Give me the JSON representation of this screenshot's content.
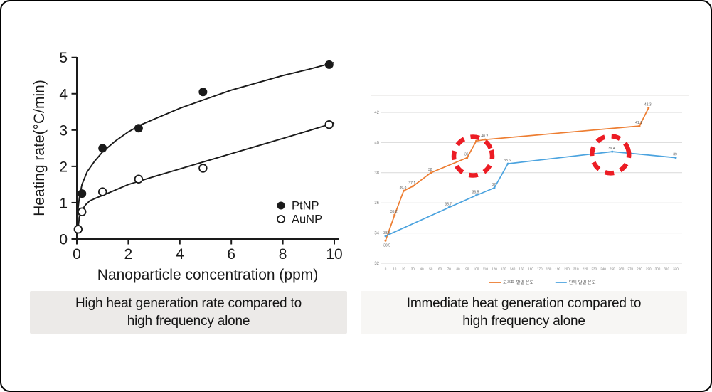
{
  "page": {
    "background": "#ffffff",
    "frame_border_color": "#000000"
  },
  "left_caption": {
    "lines": [
      "High heat generation rate compared to",
      "high frequency alone"
    ],
    "background": "#ECEAE8"
  },
  "right_caption": {
    "lines": [
      "Immediate heat generation compared to",
      "high frequency alone"
    ],
    "background": "#F7F6F4"
  },
  "chart_data": [
    {
      "id": "nanoparticle-heating-rate",
      "type": "scatter",
      "xlabel": "Nanoparticle concentration (ppm)",
      "ylabel": "Heating rate(°C/min)",
      "xlim": [
        0,
        10
      ],
      "ylim": [
        0,
        5
      ],
      "xticks": [
        0,
        2,
        4,
        6,
        8,
        10
      ],
      "yticks": [
        0,
        1,
        2,
        3,
        4,
        5
      ],
      "grid": false,
      "legend_position": "lower right",
      "axis_color": "#1a1a1a",
      "series": [
        {
          "name": "PtNP",
          "marker": "filled-circle",
          "color": "#1a1a1a",
          "points": [
            [
              0.2,
              1.25
            ],
            [
              1,
              2.5
            ],
            [
              2.4,
              3.05
            ],
            [
              4.9,
              4.05
            ],
            [
              9.8,
              4.8
            ]
          ],
          "fit_curve": [
            [
              0.01,
              0.1
            ],
            [
              0.05,
              0.85
            ],
            [
              0.1,
              1.15
            ],
            [
              0.2,
              1.5
            ],
            [
              0.4,
              1.85
            ],
            [
              0.7,
              2.15
            ],
            [
              1,
              2.4
            ],
            [
              1.5,
              2.7
            ],
            [
              2,
              2.95
            ],
            [
              2.5,
              3.15
            ],
            [
              3,
              3.3
            ],
            [
              4,
              3.6
            ],
            [
              5,
              3.85
            ],
            [
              6,
              4.1
            ],
            [
              7,
              4.3
            ],
            [
              8,
              4.5
            ],
            [
              9,
              4.67
            ],
            [
              10,
              4.86
            ]
          ]
        },
        {
          "name": "AuNP",
          "marker": "open-circle",
          "color": "#1a1a1a",
          "points": [
            [
              0.05,
              0.27
            ],
            [
              0.2,
              0.75
            ],
            [
              1,
              1.3
            ],
            [
              2.4,
              1.65
            ],
            [
              4.9,
              1.95
            ],
            [
              9.8,
              3.15
            ]
          ],
          "fit_curve": [
            [
              0.01,
              0.08
            ],
            [
              0.1,
              0.6
            ],
            [
              0.2,
              0.8
            ],
            [
              0.35,
              0.95
            ],
            [
              0.5,
              1.05
            ],
            [
              0.75,
              1.13
            ],
            [
              1,
              1.2
            ],
            [
              2,
              1.5
            ],
            [
              3,
              1.72
            ],
            [
              4,
              1.93
            ],
            [
              5,
              2.14
            ],
            [
              6,
              2.35
            ],
            [
              7,
              2.56
            ],
            [
              8,
              2.77
            ],
            [
              9,
              2.98
            ],
            [
              10,
              3.2
            ]
          ]
        }
      ]
    },
    {
      "id": "temperature-vs-time",
      "type": "line",
      "xlabel": "",
      "ylabel": "",
      "xlim": [
        0,
        320
      ],
      "ylim": [
        32,
        43
      ],
      "xticks": [
        0,
        10,
        20,
        30,
        40,
        50,
        60,
        70,
        80,
        90,
        100,
        110,
        120,
        130,
        140,
        150,
        160,
        170,
        180,
        190,
        200,
        210,
        220,
        230,
        240,
        250,
        260,
        270,
        280,
        290,
        300,
        310,
        320
      ],
      "yticks": [
        32,
        34,
        36,
        38,
        40,
        42
      ],
      "grid": true,
      "gridline_color": "#d9d9d9",
      "tick_label_color": "#808080",
      "data_label_color": "#595959",
      "legend_position": "bottom center",
      "series": [
        {
          "name": "고주파 발열 온도",
          "color": "#ED7D31",
          "points": [
            [
              0,
              33.5
            ],
            [
              10,
              35.2
            ],
            [
              20,
              36.8
            ],
            [
              30,
              37.1
            ],
            [
              50,
              38
            ],
            [
              90,
              39
            ],
            [
              100,
              40.1
            ],
            [
              110,
              40.2
            ],
            [
              280,
              41.1
            ],
            [
              290,
              42.3
            ]
          ],
          "show_data_labels": true
        },
        {
          "name": "단독 발열 온도",
          "color": "#4BA3DF",
          "points": [
            [
              0,
              33.8
            ],
            [
              70,
              35.7
            ],
            [
              100,
              36.5
            ],
            [
              120,
              37
            ],
            [
              135,
              38.6
            ],
            [
              250,
              39.4
            ],
            [
              320,
              39
            ]
          ],
          "show_data_labels": true
        }
      ],
      "annotations": [
        {
          "type": "dashed-circle",
          "x": 96.5,
          "y": 39.1,
          "radius_px": 27,
          "color": "#EC1C24"
        },
        {
          "type": "dashed-circle",
          "x": 248,
          "y": 39.2,
          "radius_px": 26,
          "color": "#EC1C24"
        }
      ]
    }
  ]
}
